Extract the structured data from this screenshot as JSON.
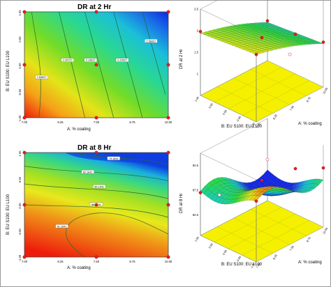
{
  "chart_data": [
    {
      "type": "contour",
      "title": "DR at 2 Hr",
      "xlabel": "A: % coating",
      "ylabel": "B: EU S100: EU L100",
      "x_ticks": [
        "7.00",
        "8.25",
        "7.50",
        "8.75",
        "10.00"
      ],
      "y_ticks": [
        "-1.00",
        "-0.50",
        "0.00",
        "0.50",
        "1.00"
      ],
      "contour_labels": [
        "1.84827",
        "1.99727",
        "2.14627",
        "2.29527",
        "2.58427"
      ],
      "design_points": [
        [
          -1,
          1
        ],
        [
          0,
          1
        ],
        [
          1,
          1
        ],
        [
          -1,
          0
        ],
        [
          0,
          0
        ],
        [
          1,
          0
        ],
        [
          -1,
          -1
        ],
        [
          0,
          -1
        ],
        [
          1,
          -1
        ]
      ]
    },
    {
      "type": "surface",
      "zlabel": "DR at 2 Hr",
      "xlabel": "A: % coating",
      "ylabel": "B: EU S100: EU L100",
      "z_ticks": [
        "1",
        "1.5",
        "2",
        "2.5"
      ],
      "x_ticks": [
        "7.00",
        "8.25",
        "7.50",
        "8.75",
        "10.00"
      ],
      "y_ticks": [
        "-1.00",
        "-0.50",
        "0.00",
        "0.50",
        "1.00"
      ]
    },
    {
      "type": "contour",
      "title": "DR at 8 Hr",
      "xlabel": "A: % coating",
      "ylabel": "B: EU S100: EU L100",
      "x_ticks": [
        "7.00",
        "8.25",
        "7.50",
        "8.75",
        "10.00"
      ],
      "y_ticks": [
        "-1.00",
        "-0.50",
        "0.00",
        "0.50",
        "1.00"
      ],
      "contour_labels": [
        "79.1641",
        "82.1641",
        "85.1641",
        "88.1641",
        "91.1641"
      ],
      "design_points": [
        [
          -1,
          1
        ],
        [
          0,
          1
        ],
        [
          1,
          1
        ],
        [
          -1,
          0
        ],
        [
          0,
          0
        ],
        [
          1,
          0
        ],
        [
          -1,
          -1
        ],
        [
          0,
          -1
        ],
        [
          1,
          -1
        ]
      ]
    },
    {
      "type": "surface",
      "zlabel": "DR at 8 Hr",
      "xlabel": "A: % coating",
      "ylabel": "B: EU S100: EU L100",
      "z_ticks": [
        "82.5",
        "87.5",
        "92.5"
      ],
      "x_ticks": [
        "7.00",
        "8.25",
        "7.50",
        "8.75",
        "10.00"
      ],
      "y_ticks": [
        "-1.00",
        "-0.50",
        "0.00",
        "0.50",
        "1.00"
      ]
    }
  ]
}
